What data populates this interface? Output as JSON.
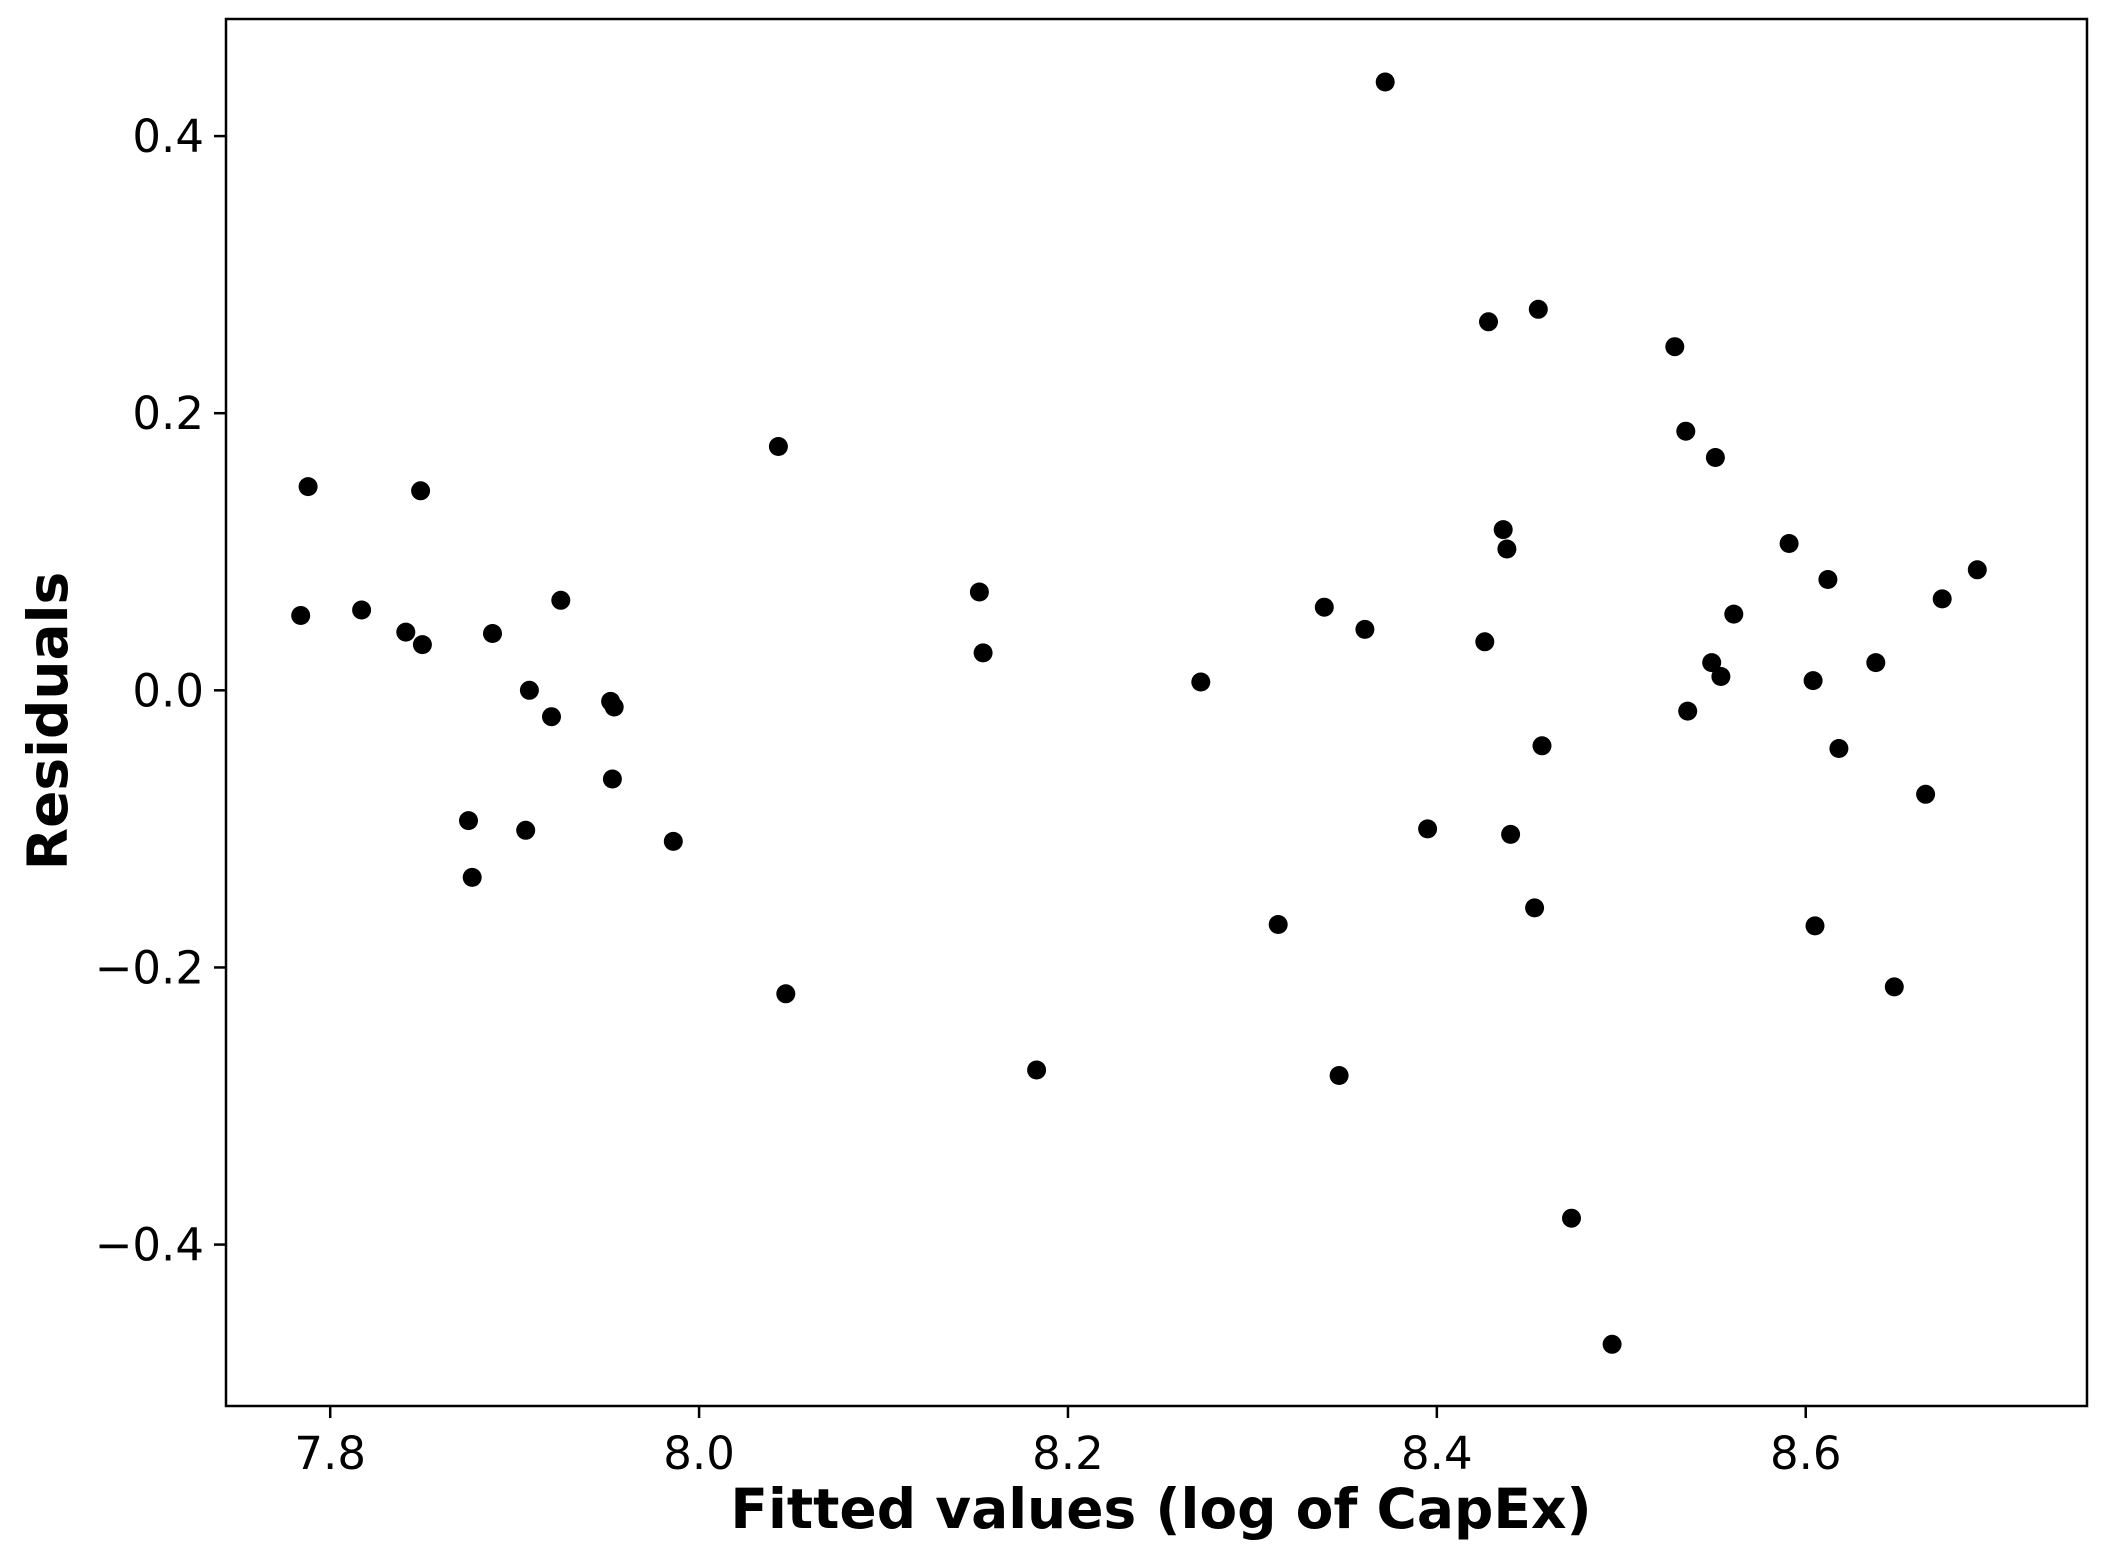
{
  "chart_data": {
    "type": "scatter",
    "title": "",
    "xlabel": "Fitted values (log of CapEx)",
    "ylabel": "Residuals",
    "xlim": [
      7.7435,
      8.7525
    ],
    "ylim": [
      -0.5165,
      0.4845
    ],
    "xticks": [
      7.8,
      8.0,
      8.2,
      8.4,
      8.6
    ],
    "xtick_labels": [
      "7.8",
      "8.0",
      "8.2",
      "8.4",
      "8.6"
    ],
    "yticks": [
      -0.4,
      -0.2,
      0.0,
      0.2,
      0.4
    ],
    "ytick_labels": [
      "−0.4",
      "−0.2",
      "0.0",
      "0.2",
      "0.4"
    ],
    "grid": false,
    "legend": "none",
    "marker_color": "#000000",
    "points": [
      {
        "x": 7.784,
        "y": 0.054
      },
      {
        "x": 7.788,
        "y": 0.147
      },
      {
        "x": 7.817,
        "y": 0.058
      },
      {
        "x": 7.841,
        "y": 0.042
      },
      {
        "x": 7.849,
        "y": 0.144
      },
      {
        "x": 7.85,
        "y": 0.033
      },
      {
        "x": 7.875,
        "y": -0.094
      },
      {
        "x": 7.877,
        "y": -0.135
      },
      {
        "x": 7.888,
        "y": 0.041
      },
      {
        "x": 7.906,
        "y": -0.101
      },
      {
        "x": 7.908,
        "y": 0.0
      },
      {
        "x": 7.92,
        "y": -0.019
      },
      {
        "x": 7.925,
        "y": 0.065
      },
      {
        "x": 7.952,
        "y": -0.008
      },
      {
        "x": 7.953,
        "y": -0.064
      },
      {
        "x": 7.954,
        "y": -0.012
      },
      {
        "x": 7.986,
        "y": -0.109
      },
      {
        "x": 8.043,
        "y": 0.176
      },
      {
        "x": 8.047,
        "y": -0.219
      },
      {
        "x": 8.152,
        "y": 0.071
      },
      {
        "x": 8.154,
        "y": 0.027
      },
      {
        "x": 8.183,
        "y": -0.274
      },
      {
        "x": 8.272,
        "y": 0.006
      },
      {
        "x": 8.314,
        "y": -0.169
      },
      {
        "x": 8.339,
        "y": 0.06
      },
      {
        "x": 8.347,
        "y": -0.278
      },
      {
        "x": 8.361,
        "y": 0.044
      },
      {
        "x": 8.372,
        "y": 0.439
      },
      {
        "x": 8.395,
        "y": -0.1
      },
      {
        "x": 8.426,
        "y": 0.035
      },
      {
        "x": 8.428,
        "y": 0.266
      },
      {
        "x": 8.436,
        "y": 0.116
      },
      {
        "x": 8.438,
        "y": 0.102
      },
      {
        "x": 8.44,
        "y": -0.104
      },
      {
        "x": 8.453,
        "y": -0.157
      },
      {
        "x": 8.455,
        "y": 0.275
      },
      {
        "x": 8.457,
        "y": -0.04
      },
      {
        "x": 8.473,
        "y": -0.381
      },
      {
        "x": 8.495,
        "y": -0.472
      },
      {
        "x": 8.529,
        "y": 0.248
      },
      {
        "x": 8.535,
        "y": 0.187
      },
      {
        "x": 8.536,
        "y": -0.015
      },
      {
        "x": 8.549,
        "y": 0.02
      },
      {
        "x": 8.551,
        "y": 0.168
      },
      {
        "x": 8.554,
        "y": 0.01
      },
      {
        "x": 8.561,
        "y": 0.055
      },
      {
        "x": 8.591,
        "y": 0.106
      },
      {
        "x": 8.604,
        "y": 0.007
      },
      {
        "x": 8.605,
        "y": -0.17
      },
      {
        "x": 8.612,
        "y": 0.08
      },
      {
        "x": 8.618,
        "y": -0.042
      },
      {
        "x": 8.638,
        "y": 0.02
      },
      {
        "x": 8.648,
        "y": -0.214
      },
      {
        "x": 8.665,
        "y": -0.075
      },
      {
        "x": 8.674,
        "y": 0.066
      },
      {
        "x": 8.693,
        "y": 0.087
      }
    ]
  }
}
